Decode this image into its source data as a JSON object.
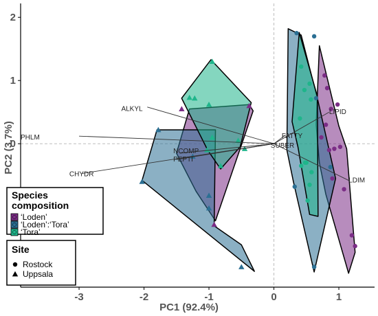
{
  "chart_data": {
    "type": "scatter",
    "xlabel": "PC1 (92.4%)",
    "ylabel": "PC2 (3.7%)",
    "xlim": [
      -3.9,
      1.55
    ],
    "ylim": [
      -2.27,
      2.22
    ],
    "x_ticks": [
      -3,
      -2,
      -1,
      0,
      1
    ],
    "y_ticks": [
      -2,
      -1,
      0,
      1,
      2
    ],
    "x_tick_labels": [
      "-3",
      "-2",
      "-1",
      "0",
      "1"
    ],
    "y_tick_labels": [
      "-2",
      "-1",
      "0",
      "1",
      "2"
    ],
    "grid": false,
    "zero_lines": true,
    "legend": {
      "composition_title_line1": "Species",
      "composition_title_line2": "composition",
      "site_title": "Site",
      "placement": "bottom-left"
    },
    "groups": [
      {
        "name": "‘Loden’",
        "color": "#7b2d86"
      },
      {
        "name": "‘Loden’:‘Tora’",
        "color": "#2b6f93"
      },
      {
        "name": "‘Tora’",
        "color": "#1fb58b"
      }
    ],
    "sites": [
      {
        "name": "Rostock",
        "symbol": "circle"
      },
      {
        "name": "Uppsala",
        "symbol": "triangle"
      }
    ],
    "hulls": [
      {
        "group": 0,
        "points": [
          [
            -1.5,
            -0.15
          ],
          [
            -1.3,
            0.55
          ],
          [
            -0.38,
            0.62
          ],
          [
            -0.32,
            0.52
          ],
          [
            -0.9,
            -1.22
          ],
          [
            -1.2,
            -0.75
          ]
        ]
      },
      {
        "group": 0,
        "points": [
          [
            0.7,
            1.55
          ],
          [
            1.0,
            0.28
          ],
          [
            1.12,
            -0.08
          ],
          [
            1.25,
            -1.72
          ],
          [
            1.15,
            -2.05
          ],
          [
            0.8,
            -0.8
          ],
          [
            0.7,
            -0.3
          ],
          [
            0.65,
            0.3
          ]
        ]
      },
      {
        "group": 1,
        "points": [
          [
            -1.8,
            0.22
          ],
          [
            -2.03,
            -0.58
          ],
          [
            -0.3,
            -2.02
          ],
          [
            -0.5,
            -1.6
          ],
          [
            -0.92,
            -1.3
          ],
          [
            -0.9,
            0.22
          ]
        ]
      },
      {
        "group": 1,
        "points": [
          [
            0.22,
            1.82
          ],
          [
            0.42,
            1.72
          ],
          [
            0.67,
            0.72
          ],
          [
            0.95,
            -0.55
          ],
          [
            0.62,
            -2.03
          ],
          [
            0.3,
            -0.6
          ],
          [
            0.2,
            -0.1
          ]
        ]
      },
      {
        "group": 2,
        "points": [
          [
            -1.42,
            0.72
          ],
          [
            -0.97,
            1.33
          ],
          [
            -0.35,
            0.65
          ],
          [
            -0.52,
            -0.05
          ],
          [
            -0.82,
            -0.4
          ],
          [
            -1.02,
            -0.1
          ]
        ]
      },
      {
        "group": 2,
        "points": [
          [
            0.39,
            1.76
          ],
          [
            0.67,
            0.75
          ],
          [
            0.68,
            -1.15
          ],
          [
            0.55,
            -1.12
          ],
          [
            0.37,
            -0.05
          ],
          [
            0.28,
            0.35
          ]
        ]
      }
    ],
    "points": [
      {
        "x": 0.35,
        "y": 1.75,
        "group": 1,
        "site": 0
      },
      {
        "x": 0.62,
        "y": 1.7,
        "group": 1,
        "site": 0
      },
      {
        "x": 0.78,
        "y": 1.08,
        "group": 0,
        "site": 0
      },
      {
        "x": 0.82,
        "y": 0.88,
        "group": 0,
        "site": 0
      },
      {
        "x": 0.98,
        "y": 0.62,
        "group": 0,
        "site": 0
      },
      {
        "x": 0.88,
        "y": 0.55,
        "group": 0,
        "site": 0
      },
      {
        "x": 0.8,
        "y": 0.3,
        "group": 0,
        "site": 0
      },
      {
        "x": 0.73,
        "y": 0.1,
        "group": 0,
        "site": 0
      },
      {
        "x": 1.02,
        "y": -0.05,
        "group": 0,
        "site": 0
      },
      {
        "x": 0.93,
        "y": -0.08,
        "group": 0,
        "site": 0
      },
      {
        "x": 0.85,
        "y": -0.1,
        "group": 0,
        "site": 0
      },
      {
        "x": 0.9,
        "y": -0.55,
        "group": 0,
        "site": 0
      },
      {
        "x": 1.08,
        "y": -0.72,
        "group": 0,
        "site": 0
      },
      {
        "x": 1.2,
        "y": -1.45,
        "group": 0,
        "site": 0
      },
      {
        "x": 1.25,
        "y": -1.62,
        "group": 0,
        "site": 0
      },
      {
        "x": 0.42,
        "y": 1.22,
        "group": 2,
        "site": 0
      },
      {
        "x": 0.47,
        "y": 0.85,
        "group": 2,
        "site": 0
      },
      {
        "x": 0.55,
        "y": 0.95,
        "group": 2,
        "site": 0
      },
      {
        "x": 0.57,
        "y": 0.7,
        "group": 2,
        "site": 0
      },
      {
        "x": 0.4,
        "y": 0.4,
        "group": 2,
        "site": 0
      },
      {
        "x": 0.42,
        "y": -0.35,
        "group": 2,
        "site": 0
      },
      {
        "x": 0.5,
        "y": -0.3,
        "group": 2,
        "site": 0
      },
      {
        "x": 0.58,
        "y": -0.45,
        "group": 2,
        "site": 0
      },
      {
        "x": 0.55,
        "y": -0.65,
        "group": 2,
        "site": 0
      },
      {
        "x": 0.52,
        "y": -0.9,
        "group": 2,
        "site": 0
      },
      {
        "x": 0.48,
        "y": -0.3,
        "group": 2,
        "site": 0
      },
      {
        "x": 0.65,
        "y": 0.72,
        "group": 1,
        "site": 0
      },
      {
        "x": 0.32,
        "y": -0.68,
        "group": 1,
        "site": 0
      },
      {
        "x": 0.87,
        "y": -0.37,
        "group": 1,
        "site": 0
      },
      {
        "x": 0.62,
        "y": -1.95,
        "group": 1,
        "site": 0
      },
      {
        "x": -1.78,
        "y": 0.22,
        "group": 1,
        "site": 1
      },
      {
        "x": -2.03,
        "y": -0.6,
        "group": 1,
        "site": 1
      },
      {
        "x": -0.5,
        "y": -1.95,
        "group": 1,
        "site": 1
      },
      {
        "x": -1.0,
        "y": -0.82,
        "group": 1,
        "site": 1
      },
      {
        "x": -0.95,
        "y": 1.3,
        "group": 2,
        "site": 1
      },
      {
        "x": -1.3,
        "y": 0.73,
        "group": 2,
        "site": 1
      },
      {
        "x": -1.22,
        "y": 0.72,
        "group": 2,
        "site": 1
      },
      {
        "x": -1.42,
        "y": 0.55,
        "group": 0,
        "site": 1
      },
      {
        "x": -1.0,
        "y": 0.62,
        "group": 2,
        "site": 1
      },
      {
        "x": -0.38,
        "y": 0.6,
        "group": 0,
        "site": 1
      },
      {
        "x": -0.55,
        "y": 0.05,
        "group": 2,
        "site": 1
      },
      {
        "x": -0.95,
        "y": 0.1,
        "group": 2,
        "site": 1
      },
      {
        "x": -1.03,
        "y": -0.1,
        "group": 2,
        "site": 1
      },
      {
        "x": -0.82,
        "y": -0.35,
        "group": 2,
        "site": 1
      },
      {
        "x": -0.45,
        "y": -0.08,
        "group": 2,
        "site": 1
      },
      {
        "x": -1.25,
        "y": -0.2,
        "group": 1,
        "site": 1
      },
      {
        "x": -0.92,
        "y": -1.28,
        "group": 0,
        "site": 1
      },
      {
        "x": -1.0,
        "y": -1.02,
        "group": 1,
        "site": 1
      }
    ],
    "loadings": [
      {
        "label": "PHLM",
        "x": -3.0,
        "y": 0.12,
        "label_x": -3.9,
        "label_y": 0.1,
        "anchor": "start"
      },
      {
        "label": "ALKYL",
        "x": -1.95,
        "y": 0.58,
        "label_x": -2.35,
        "label_y": 0.55,
        "anchor": "start"
      },
      {
        "label": "CHYDR",
        "x": -2.95,
        "y": -0.47,
        "label_x": -3.15,
        "label_y": -0.48,
        "anchor": "start"
      },
      {
        "label": "NCOMP",
        "x": -1.45,
        "y": -0.15,
        "label_x": -1.55,
        "label_y": -0.12,
        "anchor": "start"
      },
      {
        "label": "PEPTI",
        "x": -1.5,
        "y": -0.25,
        "label_x": -1.55,
        "label_y": -0.25,
        "anchor": "start"
      },
      {
        "label": "LIPID",
        "x": 0.85,
        "y": 0.5,
        "label_x": 0.85,
        "label_y": 0.5,
        "anchor": "start"
      },
      {
        "label": "FATTY",
        "x": 0.18,
        "y": 0.14,
        "label_x": 0.12,
        "label_y": 0.12,
        "anchor": "start"
      },
      {
        "label": "SUBER",
        "x": 0.05,
        "y": 0.0,
        "label_x": -0.05,
        "label_y": -0.03,
        "anchor": "start"
      },
      {
        "label": "LDIM",
        "x": 1.15,
        "y": -0.58,
        "label_x": 1.15,
        "label_y": -0.58,
        "anchor": "start"
      }
    ]
  }
}
